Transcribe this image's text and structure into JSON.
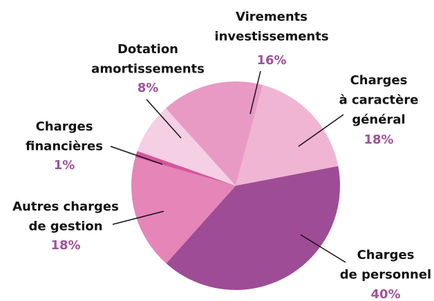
{
  "chart_data": {
    "type": "pie",
    "categories": [
      [
        "Charges",
        "à caractère",
        "général"
      ],
      [
        "Charges",
        "de personnel"
      ],
      [
        "Autres charges",
        "de gestion"
      ],
      [
        "Charges",
        "financières"
      ],
      [
        "Dotation",
        "amortissements"
      ],
      [
        "Virements",
        "investissements"
      ]
    ],
    "values": [
      18,
      40,
      18,
      1,
      8,
      16
    ],
    "value_labels": [
      "18%",
      "40%",
      "18%",
      "1%",
      "8%",
      "16%"
    ],
    "colors": [
      "#f0b5d3",
      "#9e4c96",
      "#e585b8",
      "#d4559e",
      "#f5cfe3",
      "#e89ac5"
    ],
    "label_color": "#a0509a"
  }
}
